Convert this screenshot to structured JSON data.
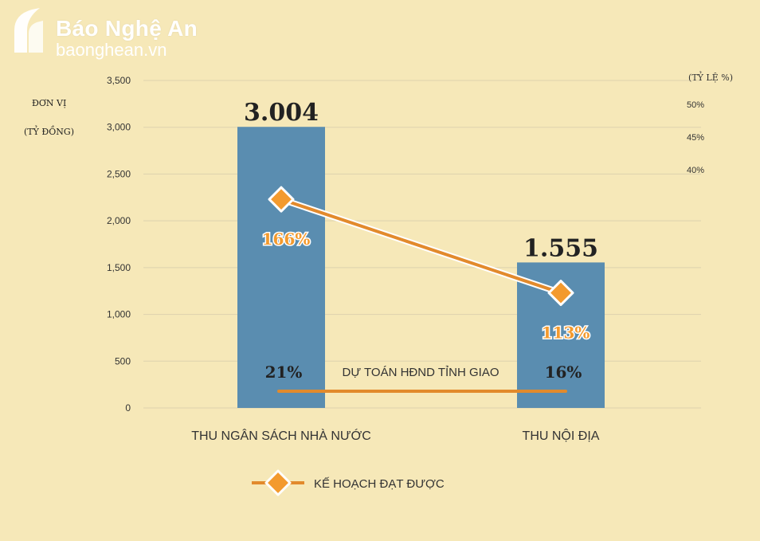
{
  "brand": {
    "name": "Báo Nghệ An",
    "url": "baonghean.vn",
    "logo_icon": "na-logo-icon"
  },
  "colors": {
    "background": "#f6e8b8",
    "bar": "#5a8db0",
    "line": "#e28a2c",
    "marker": "#f39a2e",
    "grid": "#ddd2ae"
  },
  "chart_data": {
    "type": "bar",
    "left_axis_label": [
      "ĐƠN VỊ",
      "(TỶ ĐỒNG)"
    ],
    "right_axis_label": "(TỶ LỆ %)",
    "ylim": [
      0,
      3500
    ],
    "yticks": [
      "3,500",
      "3,000",
      "2,500",
      "2,000",
      "1,500",
      "1,000",
      "500",
      "0"
    ],
    "ytick_values": [
      3500,
      3000,
      2500,
      2000,
      1500,
      1000,
      500,
      0
    ],
    "right_ticks": [
      "50%",
      "45%",
      "40%"
    ],
    "categories": [
      "THU NGÂN SÁCH NHÀ NƯỚC",
      "THU NỘI ĐỊA"
    ],
    "values": [
      3004,
      1555
    ],
    "value_labels": [
      "3.004",
      "1.555"
    ],
    "plan_achieved": {
      "name": "KẾ HOẠCH ĐẠT ĐƯỢC",
      "labels": [
        "166%",
        "113%"
      ],
      "marker_y_values": [
        2230,
        1230
      ]
    },
    "assigned_estimate": {
      "name": "DỰ TOÁN HĐND TỈNH GIAO",
      "labels": [
        "21%",
        "16%"
      ]
    },
    "grid": true,
    "legend_position": "bottom-center"
  }
}
